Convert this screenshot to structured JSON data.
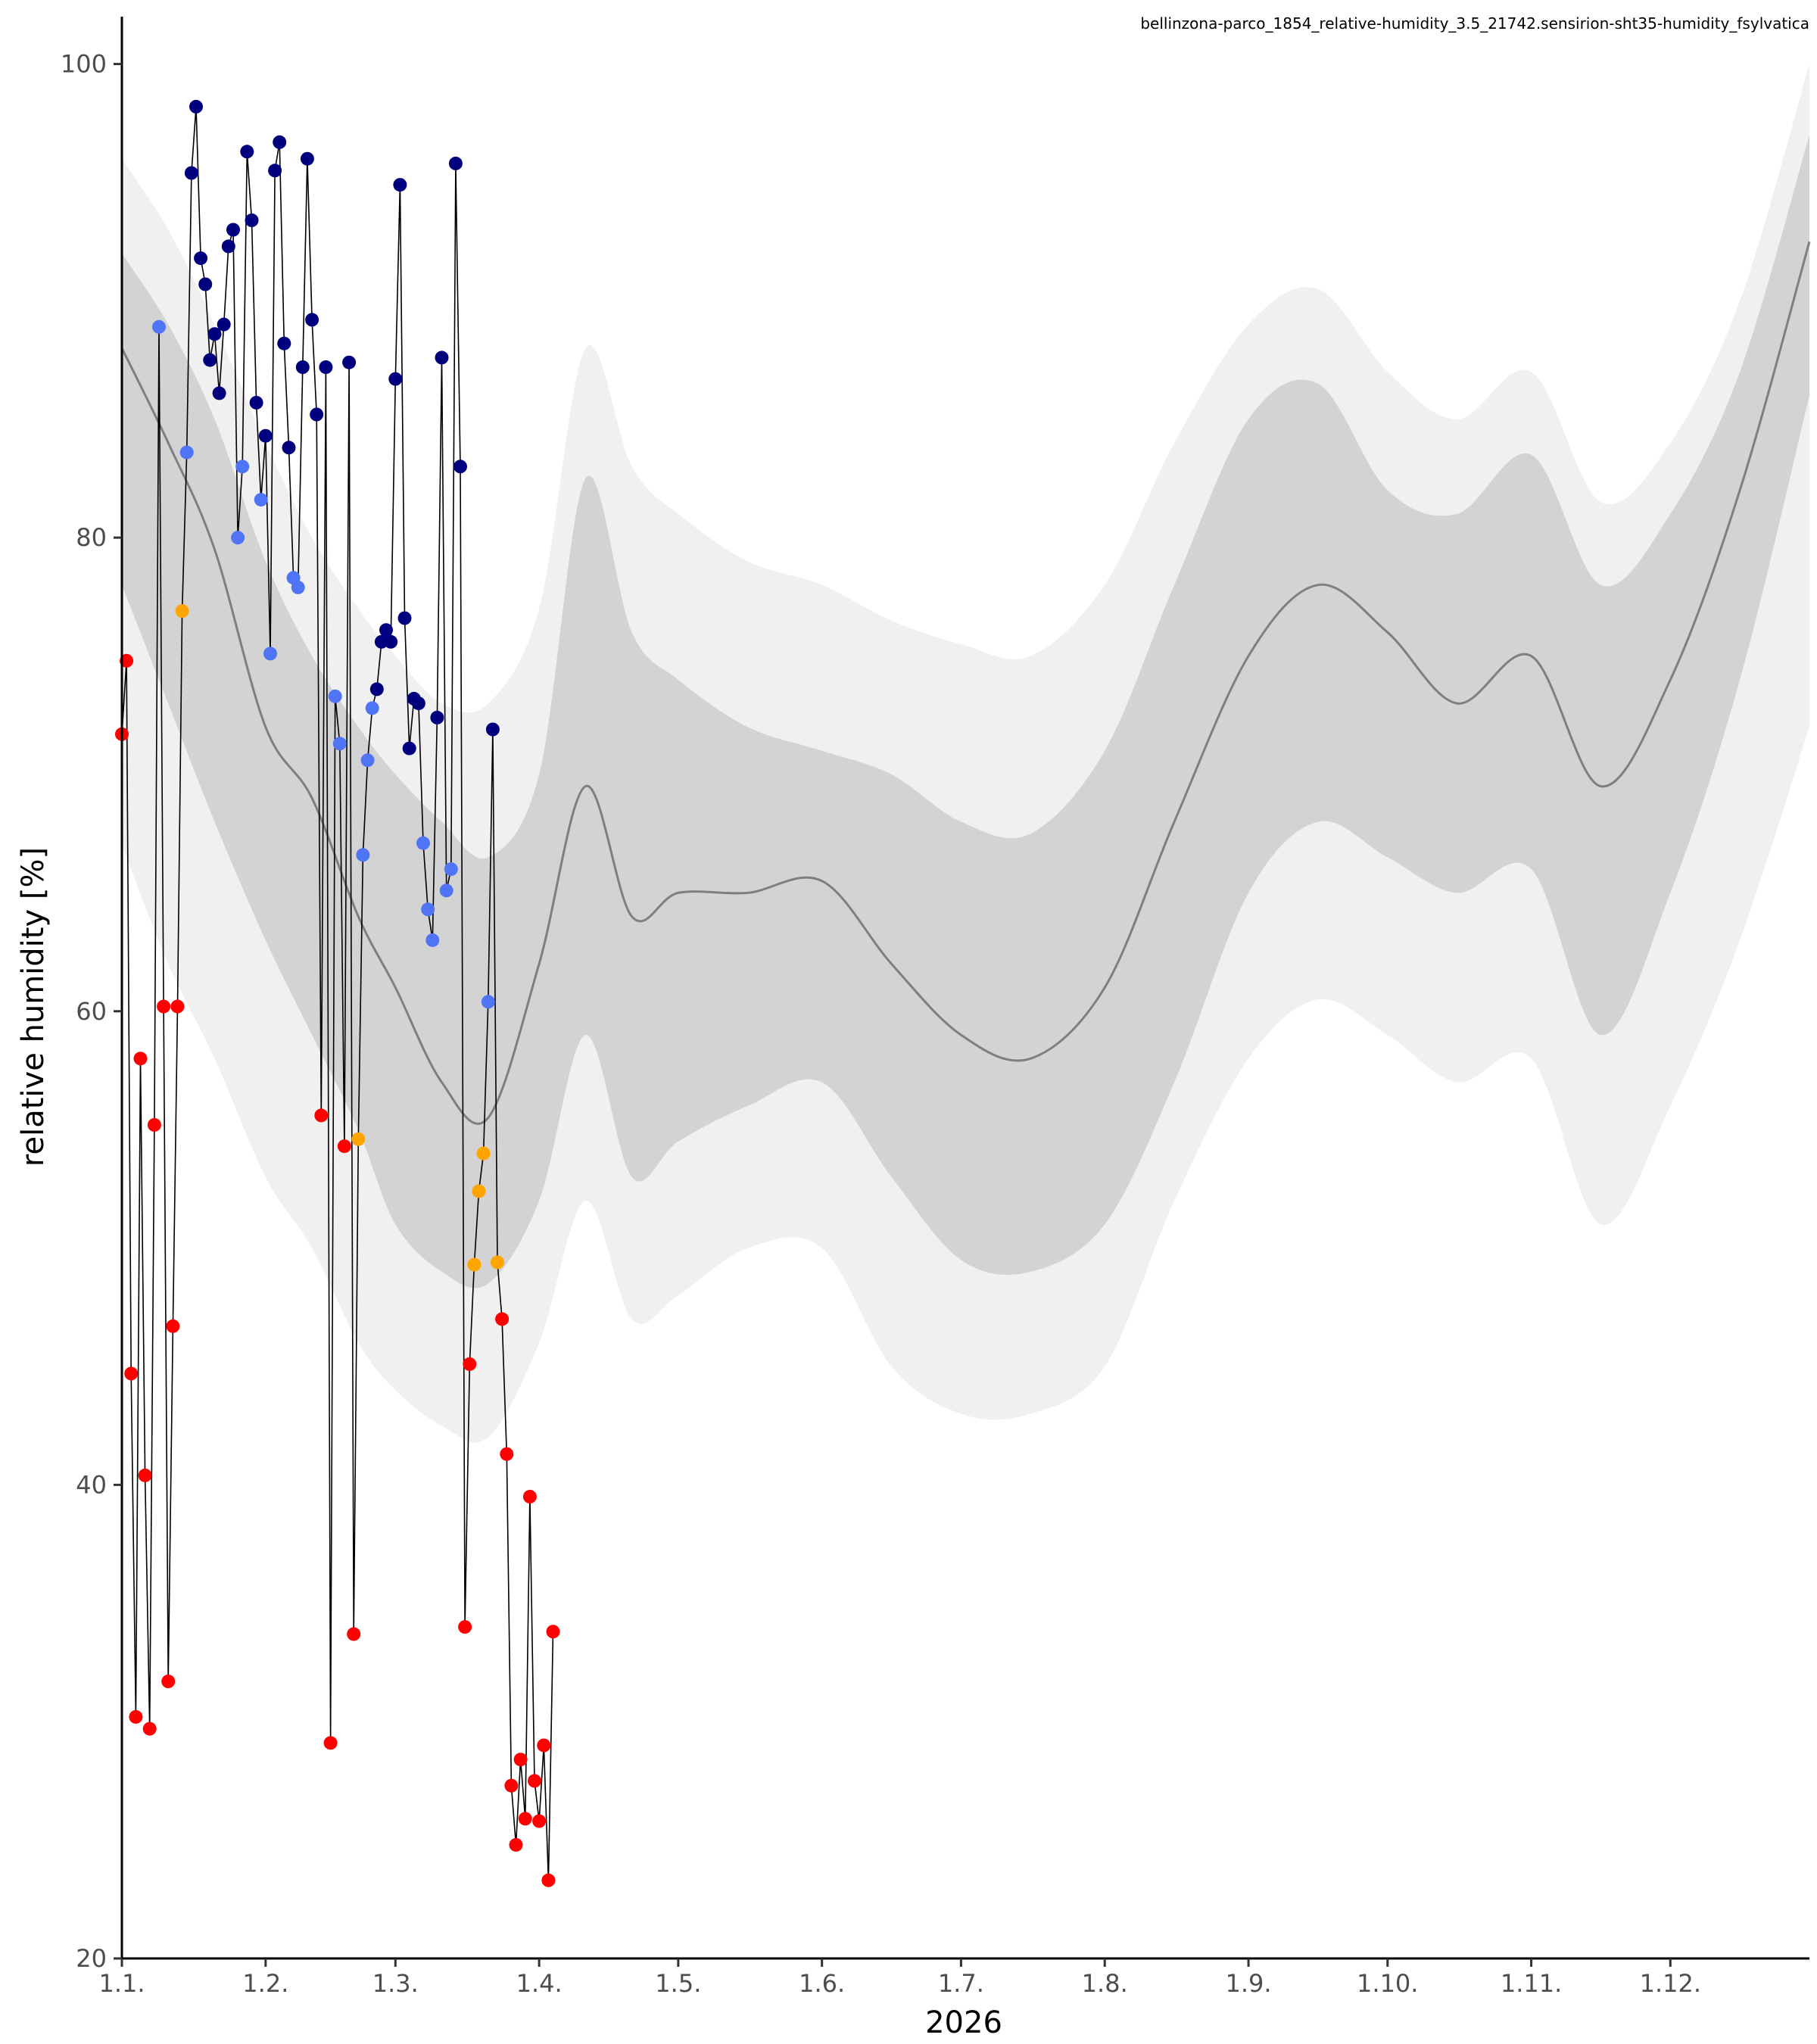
{
  "chart_data": {
    "type": "line",
    "title": "bellinzona-parco_1854_relative-humidity_3.5_21742.sensirion-sht35-humidity_fsylvatica",
    "xlabel": "2026",
    "ylabel": "relative humidity [%]",
    "ylim": [
      20,
      102
    ],
    "xlim": [
      "2026-01-01",
      "2026-12-31"
    ],
    "yticks": [
      20,
      40,
      60,
      80,
      100
    ],
    "xticks": [
      {
        "label": "1.1.",
        "date": "2026-01-01"
      },
      {
        "label": "1.2.",
        "date": "2026-02-01"
      },
      {
        "label": "1.3.",
        "date": "2026-03-01"
      },
      {
        "label": "1.4.",
        "date": "2026-04-01"
      },
      {
        "label": "1.5.",
        "date": "2026-05-01"
      },
      {
        "label": "1.6.",
        "date": "2026-06-01"
      },
      {
        "label": "1.7.",
        "date": "2026-07-01"
      },
      {
        "label": "1.8.",
        "date": "2026-08-01"
      },
      {
        "label": "1.9.",
        "date": "2026-09-01"
      },
      {
        "label": "1.10.",
        "date": "2026-10-01"
      },
      {
        "label": "1.11.",
        "date": "2026-11-01"
      },
      {
        "label": "1.12.",
        "date": "2026-12-01"
      }
    ],
    "grid": false,
    "legend": "none",
    "colors": {
      "line": "#000000",
      "band_outer": "#f0f0f0",
      "band_inner": "#d3d3d3",
      "median": "#7f7f7f",
      "point_dark_blue": "#00007f",
      "point_blue": "#4f74f5",
      "point_orange": "#ffa500",
      "point_red": "#ff0000"
    },
    "climatology": [
      {
        "date": "2026-01-01",
        "p05": 67.0,
        "p25": 78.0,
        "median": 88.0,
        "p75": 92.0,
        "p95": 96.0
      },
      {
        "date": "2026-01-11",
        "p05": 62.0,
        "p25": 73.0,
        "median": 84.0,
        "p75": 89.0,
        "p95": 93.0
      },
      {
        "date": "2026-01-21",
        "p05": 58.0,
        "p25": 68.0,
        "median": 79.5,
        "p75": 85.0,
        "p95": 89.0
      },
      {
        "date": "2026-02-01",
        "p05": 53.0,
        "p25": 63.0,
        "median": 72.0,
        "p75": 79.0,
        "p95": 84.0
      },
      {
        "date": "2026-02-11",
        "p05": 50.0,
        "p25": 59.0,
        "median": 69.0,
        "p75": 75.0,
        "p95": 80.0
      },
      {
        "date": "2026-02-21",
        "p05": 46.0,
        "p25": 55.0,
        "median": 64.0,
        "p75": 72.0,
        "p95": 77.0
      },
      {
        "date": "2026-03-01",
        "p05": 44.0,
        "p25": 51.0,
        "median": 61.0,
        "p75": 70.0,
        "p95": 75.0
      },
      {
        "date": "2026-03-11",
        "p05": 42.5,
        "p25": 49.0,
        "median": 57.0,
        "p75": 68.0,
        "p95": 73.0
      },
      {
        "date": "2026-03-21",
        "p05": 42.0,
        "p25": 48.5,
        "median": 55.5,
        "p75": 66.5,
        "p95": 73.0
      },
      {
        "date": "2026-04-01",
        "p05": 46.0,
        "p25": 52.0,
        "median": 62.0,
        "p75": 70.0,
        "p95": 77.0
      },
      {
        "date": "2026-04-11",
        "p05": 52.0,
        "p25": 59.0,
        "median": 69.5,
        "p75": 82.5,
        "p95": 88.0
      },
      {
        "date": "2026-04-21",
        "p05": 47.0,
        "p25": 53.0,
        "median": 64.0,
        "p75": 76.0,
        "p95": 83.0
      },
      {
        "date": "2026-05-01",
        "p05": 48.0,
        "p25": 54.5,
        "median": 65.0,
        "p75": 74.0,
        "p95": 81.0
      },
      {
        "date": "2026-05-16",
        "p05": 50.0,
        "p25": 56.0,
        "median": 65.0,
        "p75": 72.0,
        "p95": 79.0
      },
      {
        "date": "2026-06-01",
        "p05": 50.0,
        "p25": 57.0,
        "median": 65.5,
        "p75": 71.0,
        "p95": 78.0
      },
      {
        "date": "2026-06-16",
        "p05": 45.0,
        "p25": 53.0,
        "median": 62.0,
        "p75": 70.0,
        "p95": 76.5
      },
      {
        "date": "2026-07-01",
        "p05": 43.0,
        "p25": 49.5,
        "median": 59.0,
        "p75": 68.0,
        "p95": 75.5
      },
      {
        "date": "2026-07-16",
        "p05": 43.0,
        "p25": 49.0,
        "median": 58.0,
        "p75": 67.5,
        "p95": 75.0
      },
      {
        "date": "2026-08-01",
        "p05": 45.0,
        "p25": 51.0,
        "median": 61.0,
        "p75": 71.0,
        "p95": 78.0
      },
      {
        "date": "2026-08-16",
        "p05": 52.0,
        "p25": 57.0,
        "median": 68.0,
        "p75": 78.0,
        "p95": 84.0
      },
      {
        "date": "2026-09-01",
        "p05": 58.0,
        "p25": 65.0,
        "median": 75.0,
        "p75": 85.0,
        "p95": 89.0
      },
      {
        "date": "2026-09-16",
        "p05": 60.5,
        "p25": 68.0,
        "median": 78.0,
        "p75": 86.5,
        "p95": 90.5
      },
      {
        "date": "2026-10-01",
        "p05": 59.0,
        "p25": 66.5,
        "median": 76.0,
        "p75": 82.0,
        "p95": 87.0
      },
      {
        "date": "2026-10-16",
        "p05": 57.0,
        "p25": 65.0,
        "median": 73.0,
        "p75": 81.0,
        "p95": 85.0
      },
      {
        "date": "2026-11-01",
        "p05": 58.0,
        "p25": 66.0,
        "median": 75.0,
        "p75": 83.5,
        "p95": 87.0
      },
      {
        "date": "2026-11-16",
        "p05": 51.0,
        "p25": 59.0,
        "median": 69.5,
        "p75": 78.0,
        "p95": 81.5
      },
      {
        "date": "2026-12-01",
        "p05": 56.0,
        "p25": 65.0,
        "median": 74.0,
        "p75": 81.0,
        "p95": 84.0
      },
      {
        "date": "2026-12-16",
        "p05": 63.0,
        "p25": 74.0,
        "median": 82.0,
        "p75": 87.0,
        "p95": 90.0
      },
      {
        "date": "2026-12-31",
        "p05": 72.0,
        "p25": 86.0,
        "median": 92.5,
        "p75": 97.0,
        "p95": 100.0
      }
    ],
    "series": [
      {
        "points": [
          {
            "date": "2026-01-01",
            "value": 71.7,
            "color": "#ff0000"
          },
          {
            "date": "2026-01-02",
            "value": 74.8,
            "color": "#ff0000"
          },
          {
            "date": "2026-01-03",
            "value": 44.7,
            "color": "#ff0000"
          },
          {
            "date": "2026-01-04",
            "value": 30.2,
            "color": "#ff0000"
          },
          {
            "date": "2026-01-05",
            "value": 58.0,
            "color": "#ff0000"
          },
          {
            "date": "2026-01-06",
            "value": 40.4,
            "color": "#ff0000"
          },
          {
            "date": "2026-01-07",
            "value": 29.7,
            "color": "#ff0000"
          },
          {
            "date": "2026-01-08",
            "value": 55.2,
            "color": "#ff0000"
          },
          {
            "date": "2026-01-09",
            "value": 88.9,
            "color": "#4f74f5"
          },
          {
            "date": "2026-01-10",
            "value": 60.2,
            "color": "#ff0000"
          },
          {
            "date": "2026-01-11",
            "value": 31.7,
            "color": "#ff0000"
          },
          {
            "date": "2026-01-12",
            "value": 46.7,
            "color": "#ff0000"
          },
          {
            "date": "2026-01-13",
            "value": 60.2,
            "color": "#ff0000"
          },
          {
            "date": "2026-01-14",
            "value": 76.9,
            "color": "#ffa500"
          },
          {
            "date": "2026-01-15",
            "value": 83.6,
            "color": "#4f74f5"
          },
          {
            "date": "2026-01-16",
            "value": 95.4,
            "color": "#00007f"
          },
          {
            "date": "2026-01-17",
            "value": 98.2,
            "color": "#00007f"
          },
          {
            "date": "2026-01-18",
            "value": 91.8,
            "color": "#00007f"
          },
          {
            "date": "2026-01-19",
            "value": 90.7,
            "color": "#00007f"
          },
          {
            "date": "2026-01-20",
            "value": 87.5,
            "color": "#00007f"
          },
          {
            "date": "2026-01-21",
            "value": 88.6,
            "color": "#00007f"
          },
          {
            "date": "2026-01-22",
            "value": 86.1,
            "color": "#00007f"
          },
          {
            "date": "2026-01-23",
            "value": 89.0,
            "color": "#00007f"
          },
          {
            "date": "2026-01-24",
            "value": 92.3,
            "color": "#00007f"
          },
          {
            "date": "2026-01-25",
            "value": 93.0,
            "color": "#00007f"
          },
          {
            "date": "2026-01-26",
            "value": 80.0,
            "color": "#4f74f5"
          },
          {
            "date": "2026-01-27",
            "value": 83.0,
            "color": "#4f74f5"
          },
          {
            "date": "2026-01-28",
            "value": 96.3,
            "color": "#00007f"
          },
          {
            "date": "2026-01-29",
            "value": 93.4,
            "color": "#00007f"
          },
          {
            "date": "2026-01-30",
            "value": 85.7,
            "color": "#00007f"
          },
          {
            "date": "2026-01-31",
            "value": 81.6,
            "color": "#4f74f5"
          },
          {
            "date": "2026-02-01",
            "value": 84.3,
            "color": "#00007f"
          },
          {
            "date": "2026-02-02",
            "value": 75.1,
            "color": "#4f74f5"
          },
          {
            "date": "2026-02-03",
            "value": 95.5,
            "color": "#00007f"
          },
          {
            "date": "2026-02-04",
            "value": 96.7,
            "color": "#00007f"
          },
          {
            "date": "2026-02-05",
            "value": 88.2,
            "color": "#00007f"
          },
          {
            "date": "2026-02-06",
            "value": 83.8,
            "color": "#00007f"
          },
          {
            "date": "2026-02-07",
            "value": 78.3,
            "color": "#4f74f5"
          },
          {
            "date": "2026-02-08",
            "value": 77.9,
            "color": "#4f74f5"
          },
          {
            "date": "2026-02-09",
            "value": 87.2,
            "color": "#00007f"
          },
          {
            "date": "2026-02-10",
            "value": 96.0,
            "color": "#00007f"
          },
          {
            "date": "2026-02-11",
            "value": 89.2,
            "color": "#00007f"
          },
          {
            "date": "2026-02-12",
            "value": 85.2,
            "color": "#00007f"
          },
          {
            "date": "2026-02-13",
            "value": 55.6,
            "color": "#ff0000"
          },
          {
            "date": "2026-02-14",
            "value": 87.2,
            "color": "#00007f"
          },
          {
            "date": "2026-02-15",
            "value": 29.1,
            "color": "#ff0000"
          },
          {
            "date": "2026-02-16",
            "value": 73.3,
            "color": "#4f74f5"
          },
          {
            "date": "2026-02-17",
            "value": 71.3,
            "color": "#4f74f5"
          },
          {
            "date": "2026-02-18",
            "value": 54.3,
            "color": "#ff0000"
          },
          {
            "date": "2026-02-19",
            "value": 87.4,
            "color": "#00007f"
          },
          {
            "date": "2026-02-20",
            "value": 33.7,
            "color": "#ff0000"
          },
          {
            "date": "2026-02-21",
            "value": 54.6,
            "color": "#ffa500"
          },
          {
            "date": "2026-02-22",
            "value": 66.6,
            "color": "#4f74f5"
          },
          {
            "date": "2026-02-23",
            "value": 70.6,
            "color": "#4f74f5"
          },
          {
            "date": "2026-02-24",
            "value": 72.8,
            "color": "#4f74f5"
          },
          {
            "date": "2026-02-25",
            "value": 73.6,
            "color": "#00007f"
          },
          {
            "date": "2026-02-26",
            "value": 75.6,
            "color": "#00007f"
          },
          {
            "date": "2026-02-27",
            "value": 76.1,
            "color": "#00007f"
          },
          {
            "date": "2026-02-28",
            "value": 75.6,
            "color": "#00007f"
          },
          {
            "date": "2026-03-01",
            "value": 86.7,
            "color": "#00007f"
          },
          {
            "date": "2026-03-02",
            "value": 94.9,
            "color": "#00007f"
          },
          {
            "date": "2026-03-03",
            "value": 76.6,
            "color": "#00007f"
          },
          {
            "date": "2026-03-04",
            "value": 71.1,
            "color": "#00007f"
          },
          {
            "date": "2026-03-05",
            "value": 73.2,
            "color": "#00007f"
          },
          {
            "date": "2026-03-06",
            "value": 73.0,
            "color": "#00007f"
          },
          {
            "date": "2026-03-07",
            "value": 67.1,
            "color": "#4f74f5"
          },
          {
            "date": "2026-03-08",
            "value": 64.3,
            "color": "#4f74f5"
          },
          {
            "date": "2026-03-09",
            "value": 63.0,
            "color": "#4f74f5"
          },
          {
            "date": "2026-03-10",
            "value": 72.4,
            "color": "#00007f"
          },
          {
            "date": "2026-03-11",
            "value": 87.6,
            "color": "#00007f"
          },
          {
            "date": "2026-03-12",
            "value": 65.1,
            "color": "#4f74f5"
          },
          {
            "date": "2026-03-13",
            "value": 66.0,
            "color": "#4f74f5"
          },
          {
            "date": "2026-03-14",
            "value": 95.8,
            "color": "#00007f"
          },
          {
            "date": "2026-03-15",
            "value": 83.0,
            "color": "#00007f"
          },
          {
            "date": "2026-03-16",
            "value": 34.0,
            "color": "#ff0000"
          },
          {
            "date": "2026-03-17",
            "value": 45.1,
            "color": "#ff0000"
          },
          {
            "date": "2026-03-18",
            "value": 49.3,
            "color": "#ffa500"
          },
          {
            "date": "2026-03-19",
            "value": 52.4,
            "color": "#ffa500"
          },
          {
            "date": "2026-03-20",
            "value": 54.0,
            "color": "#ffa500"
          },
          {
            "date": "2026-03-21",
            "value": 60.4,
            "color": "#4f74f5"
          },
          {
            "date": "2026-03-22",
            "value": 71.9,
            "color": "#00007f"
          },
          {
            "date": "2026-03-23",
            "value": 49.4,
            "color": "#ffa500"
          },
          {
            "date": "2026-03-24",
            "value": 47.0,
            "color": "#ff0000"
          },
          {
            "date": "2026-03-25",
            "value": 41.3,
            "color": "#ff0000"
          },
          {
            "date": "2026-03-26",
            "value": 27.3,
            "color": "#ff0000"
          },
          {
            "date": "2026-03-27",
            "value": 24.8,
            "color": "#ff0000"
          },
          {
            "date": "2026-03-28",
            "value": 28.4,
            "color": "#ff0000"
          },
          {
            "date": "2026-03-29",
            "value": 25.9,
            "color": "#ff0000"
          },
          {
            "date": "2026-03-30",
            "value": 39.5,
            "color": "#ff0000"
          },
          {
            "date": "2026-03-31",
            "value": 27.5,
            "color": "#ff0000"
          },
          {
            "date": "2026-04-01",
            "value": 25.8,
            "color": "#ff0000"
          },
          {
            "date": "2026-04-02",
            "value": 29.0,
            "color": "#ff0000"
          },
          {
            "date": "2026-04-03",
            "value": 23.3,
            "color": "#ff0000"
          },
          {
            "date": "2026-04-04",
            "value": 33.8,
            "color": "#ff0000"
          }
        ]
      }
    ]
  }
}
